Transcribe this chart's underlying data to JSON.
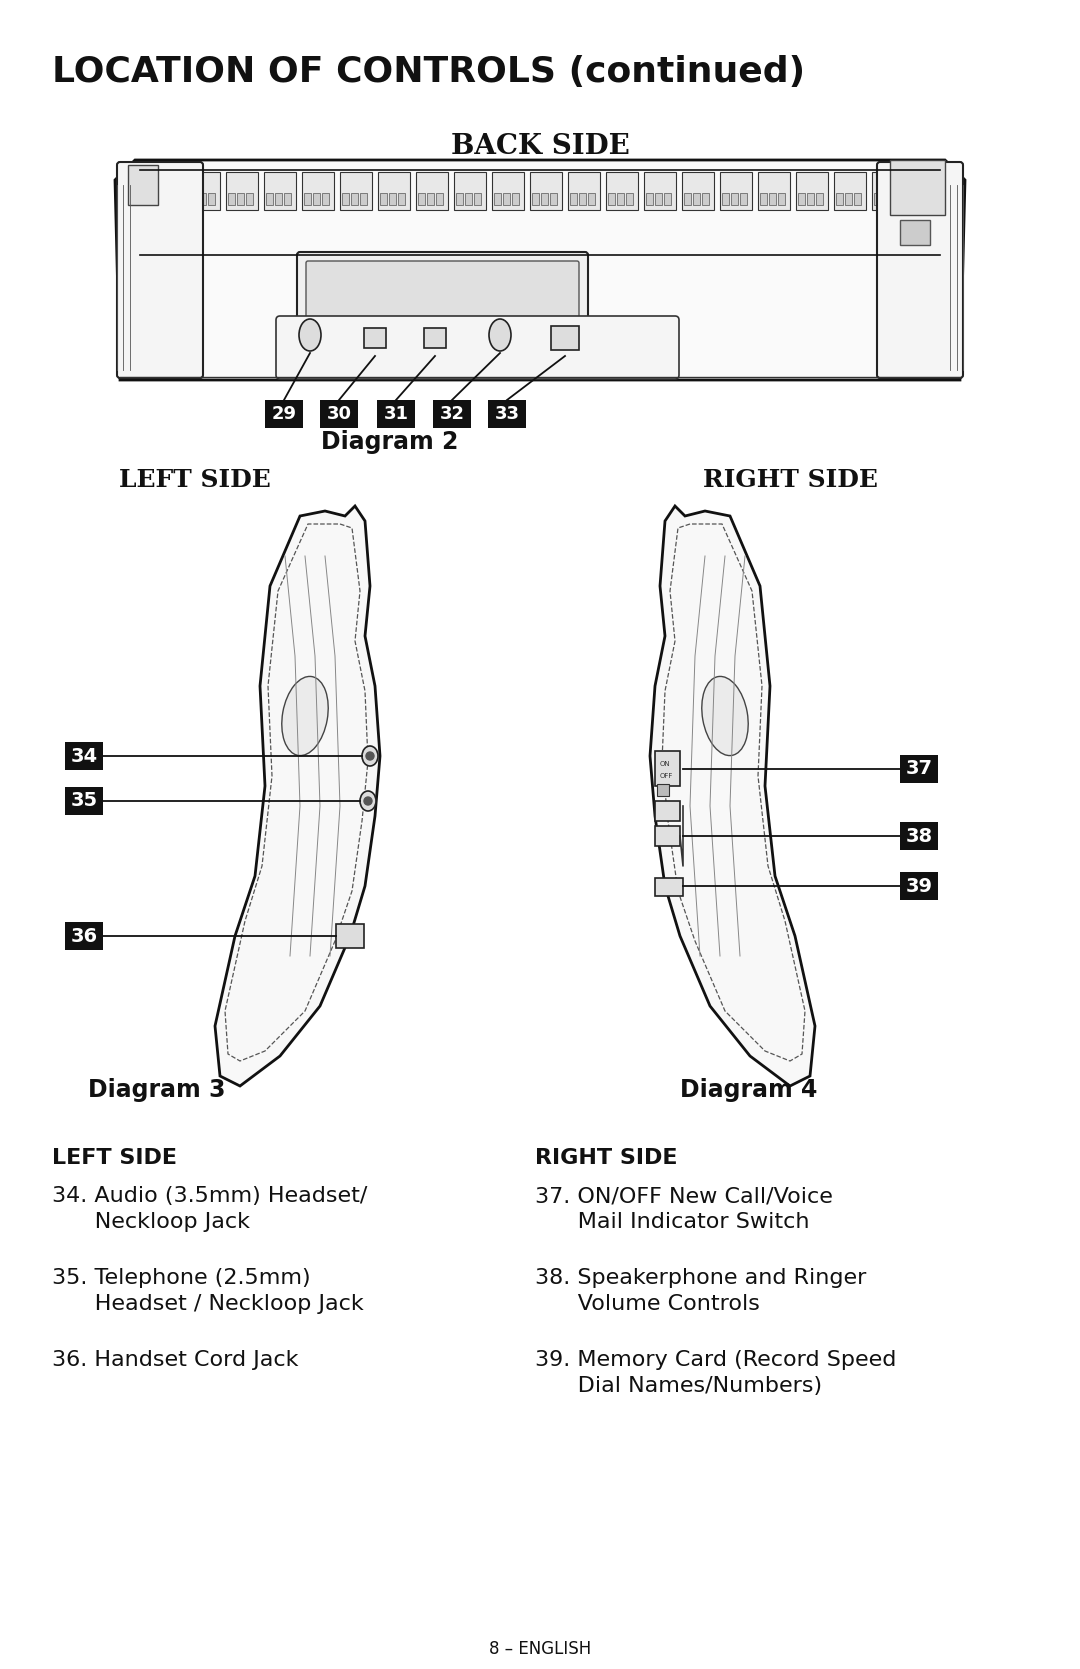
{
  "title": "LOCATION OF CONTROLS (continued)",
  "bg_color": "#ffffff",
  "text_color": "#111111",
  "page_footer": "8 – ENGLISH",
  "back_side_label": "BACK SIDE",
  "diagram2_label": "Diagram 2",
  "diagram2_numbers": [
    "29",
    "30",
    "31",
    "32",
    "33"
  ],
  "left_side_label": "LEFT SIDE",
  "diagram3_label": "Diagram 3",
  "right_side_label": "RIGHT SIDE",
  "diagram4_label": "Diagram 4",
  "left_nums": [
    "34",
    "35",
    "36"
  ],
  "right_nums": [
    "37",
    "38",
    "39"
  ],
  "left_heading": "LEFT SIDE",
  "right_heading": "RIGHT SIDE"
}
